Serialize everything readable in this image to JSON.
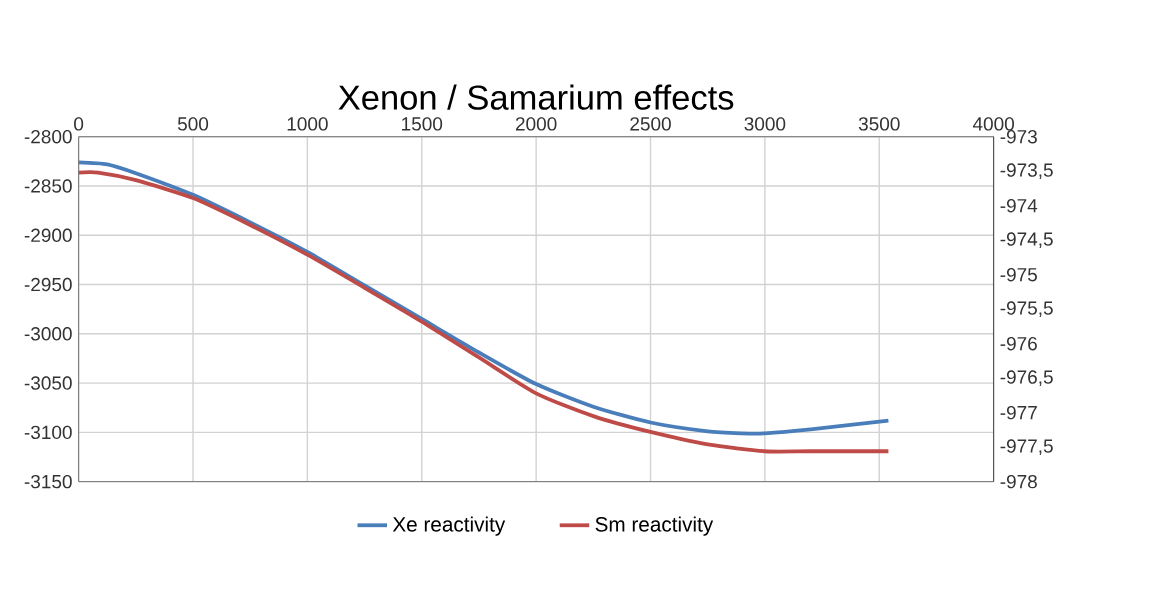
{
  "chart_data": {
    "type": "line",
    "title": "Xenon / Samarium effects",
    "xlim": [
      0,
      4000
    ],
    "xticks": [
      0,
      500,
      1000,
      1500,
      2000,
      2500,
      3000,
      3500,
      4000
    ],
    "ylim": [
      -3150,
      -2800
    ],
    "yticks": [
      -3150,
      -3100,
      -3050,
      -3000,
      -2950,
      -2900,
      -2850,
      -2800
    ],
    "y2lim": [
      -978,
      -973
    ],
    "y2ticks": [
      {
        "value": -978,
        "label": "-978"
      },
      {
        "value": -977.5,
        "label": "-977,5"
      },
      {
        "value": -977,
        "label": "-977"
      },
      {
        "value": -976.5,
        "label": "-976,5"
      },
      {
        "value": -976,
        "label": "-976"
      },
      {
        "value": -975.5,
        "label": "-975,5"
      },
      {
        "value": -975,
        "label": "-975"
      },
      {
        "value": -974.5,
        "label": "-974,5"
      },
      {
        "value": -974,
        "label": "-974"
      },
      {
        "value": -973.5,
        "label": "-973,5"
      },
      {
        "value": -973,
        "label": "-973"
      }
    ],
    "grid": true,
    "legend": "bottom",
    "series": [
      {
        "name": "Xe reactivity",
        "color": "#4a7ebb",
        "x": [
          0,
          125,
          250,
          500,
          750,
          1000,
          1250,
          1500,
          1750,
          2000,
          2250,
          2500,
          2750,
          2900,
          3000,
          3200,
          3540
        ],
        "values": [
          -2826,
          -2828,
          -2837,
          -2859,
          -2887,
          -2917,
          -2951,
          -2985,
          -3019,
          -3051,
          -3074,
          -3090,
          -3099,
          -3101,
          -3101,
          -3097,
          -3088
        ]
      },
      {
        "name": "Sm reactivity",
        "color": "#be4b48",
        "axis": "y2",
        "x": [
          0,
          85,
          250,
          500,
          750,
          1000,
          1250,
          1500,
          1750,
          2000,
          2250,
          2500,
          2750,
          3000,
          3200,
          3540
        ],
        "values": [
          -973.52,
          -973.52,
          -973.63,
          -973.89,
          -974.28,
          -974.71,
          -975.19,
          -975.68,
          -976.2,
          -976.72,
          -977.05,
          -977.28,
          -977.46,
          -977.56,
          -977.56,
          -977.56
        ]
      }
    ]
  }
}
